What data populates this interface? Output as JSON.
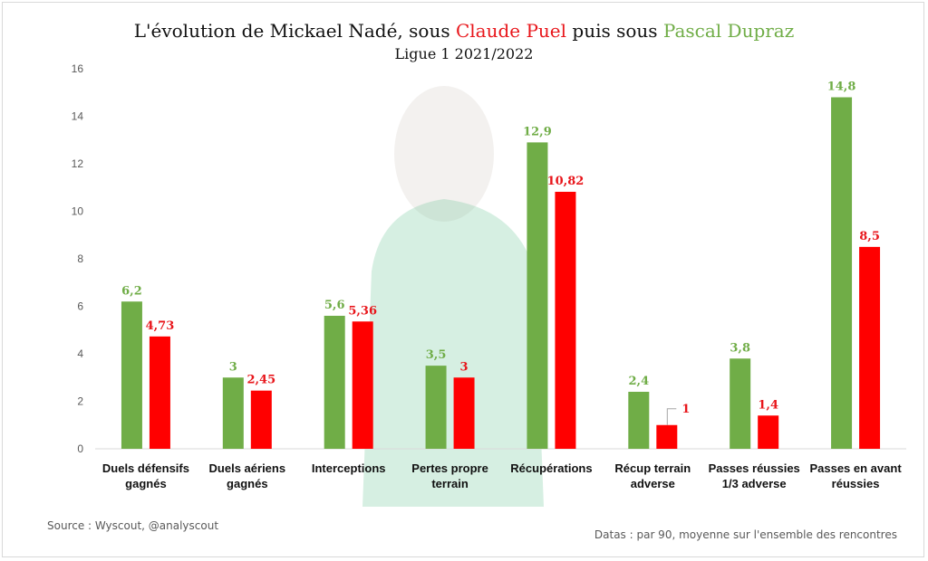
{
  "chart_data": {
    "type": "bar",
    "title_parts": {
      "prefix": "L'évolution de Mickael Nadé, sous ",
      "coach1": "Claude Puel",
      "middle": " puis sous ",
      "coach2": "Pascal Dupraz"
    },
    "subtitle": "Ligue 1 2021/2022",
    "categories": [
      "Duels défensifs|gagnés",
      "Duels aériens|gagnés",
      "Interceptions",
      "Pertes propre|terrain",
      "Récupérations",
      "Récup terrain|adverse",
      "Passes réussies|1/3 adverse",
      "Passes en avant|réussies"
    ],
    "series": [
      {
        "name": "Pascal Dupraz",
        "color": "#70ad47",
        "values": [
          6.2,
          3,
          5.6,
          3.5,
          12.9,
          2.4,
          3.8,
          14.8
        ],
        "labels": [
          "6,2",
          "3",
          "5,6",
          "3,5",
          "12,9",
          "2,4",
          "3,8",
          "14,8"
        ]
      },
      {
        "name": "Claude Puel",
        "color": "#ff0000",
        "values": [
          4.73,
          2.45,
          5.36,
          3,
          10.82,
          1,
          1.4,
          8.5
        ],
        "labels": [
          "4,73",
          "2,45",
          "5,36",
          "3",
          "10,82",
          "1",
          "1,4",
          "8,5"
        ]
      }
    ],
    "ylim": [
      0,
      16
    ],
    "yticks": [
      0,
      2,
      4,
      6,
      8,
      10,
      12,
      14,
      16
    ],
    "grid": false,
    "legend": "none"
  },
  "footer": {
    "source": "Source : Wyscout, @analyscout",
    "note": "Datas : par 90, moyenne sur l'ensemble des rencontres"
  }
}
